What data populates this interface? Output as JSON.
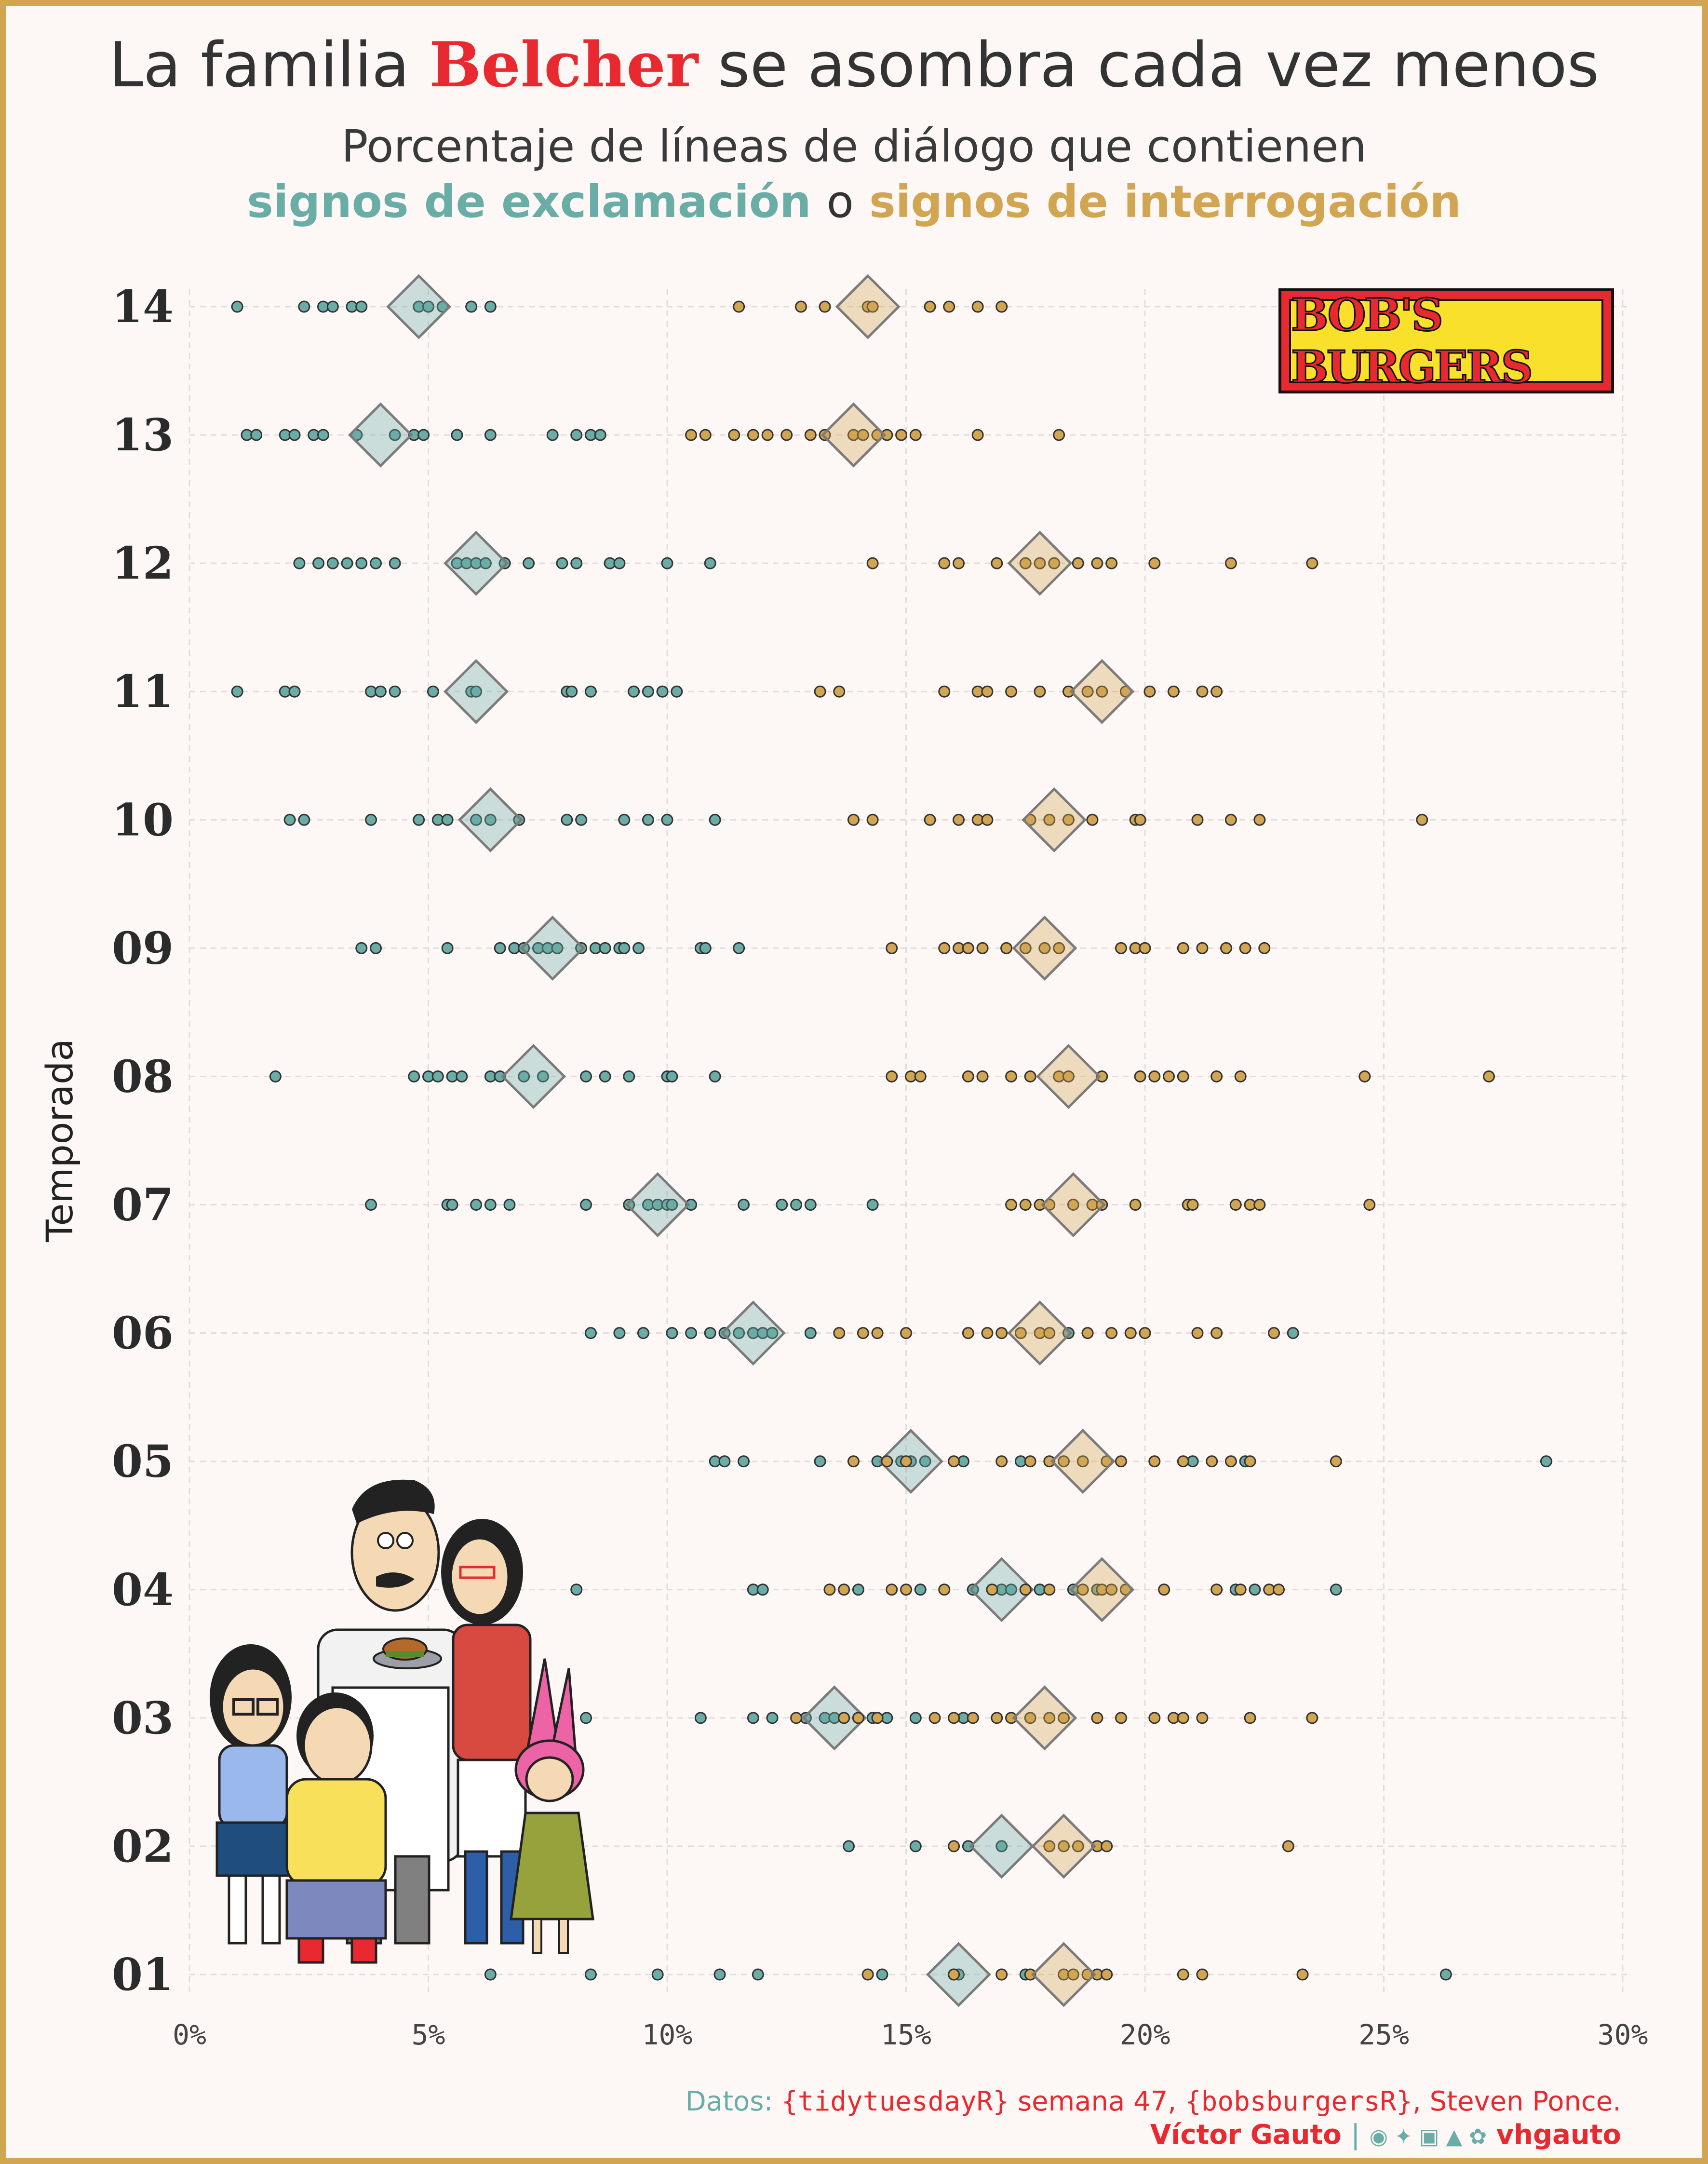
{
  "title": {
    "pre": "La familia",
    "brand": "Belcher",
    "post": "se asombra cada vez menos"
  },
  "subtitle": {
    "line1": "Porcentaje de líneas de diálogo que contienen",
    "exclamation": "signos de exclamación",
    "connector": "o",
    "interrogation": "signos de interrogación"
  },
  "logo_text": "BOB'S BURGERS",
  "footer": {
    "datos_label": "Datos:",
    "pkg1": "{tidytuesdayR}",
    "week": "semana 47,",
    "pkg2": "{bobsburgersR}",
    "source": ", Steven Ponce.",
    "author": "Víctor Gauto",
    "separator": "|",
    "social_icons": "github twitter instagram mastodon bluesky",
    "handle": "vhgauto"
  },
  "colors": {
    "exclamation": "#6aada7",
    "interrogation": "#d1a552",
    "brand": "#e8292f",
    "frame": "#d1a552",
    "background": "#fdf8f6"
  },
  "chart_data": {
    "type": "scatter",
    "ylabel": "Temporada",
    "xlabel": "",
    "xlim": [
      0,
      30
    ],
    "x_ticks": [
      "0%",
      "5%",
      "10%",
      "15%",
      "20%",
      "25%",
      "30%"
    ],
    "x_tick_values": [
      0,
      5,
      10,
      15,
      20,
      25,
      30
    ],
    "grid": true,
    "seasons": [
      "01",
      "02",
      "03",
      "04",
      "05",
      "06",
      "07",
      "08",
      "09",
      "10",
      "11",
      "12",
      "13",
      "14"
    ],
    "series": [
      {
        "name": "signos de exclamación",
        "color": "#6aada7",
        "means": [
          16.1,
          17.0,
          13.5,
          17.0,
          15.1,
          11.8,
          9.8,
          7.2,
          7.6,
          6.3,
          6.0,
          6.0,
          4.0,
          4.8
        ],
        "points": [
          [
            6.3,
            8.4,
            9.8,
            11.1,
            11.9,
            14.5,
            16.0,
            16.1,
            17.5,
            26.3
          ],
          [
            13.8,
            15.2,
            16.3,
            17.0
          ],
          [
            8.3,
            10.7,
            11.8,
            12.2,
            12.9,
            13.3,
            13.5,
            13.7,
            14.0,
            14.3,
            14.6,
            15.2,
            16.2
          ],
          [
            8.1,
            11.8,
            12.0,
            14.0,
            15.3,
            16.4,
            17.0,
            17.2,
            17.8,
            18.5,
            19.0,
            21.9,
            22.3,
            24.0
          ],
          [
            11.0,
            11.2,
            11.6,
            13.2,
            14.4,
            14.9,
            15.1,
            15.4,
            16.2,
            17.4,
            21.0,
            22.1,
            28.4
          ],
          [
            8.4,
            9.0,
            9.5,
            10.1,
            10.5,
            10.9,
            11.2,
            11.5,
            11.8,
            12.0,
            12.2,
            13.0,
            18.4,
            23.1
          ],
          [
            3.8,
            5.4,
            5.5,
            6.0,
            6.3,
            6.7,
            8.3,
            9.2,
            9.6,
            9.8,
            10.0,
            10.1,
            10.5,
            11.6,
            12.4,
            12.7,
            13.0,
            14.3
          ],
          [
            1.8,
            4.7,
            5.0,
            5.2,
            5.5,
            5.7,
            6.3,
            6.5,
            7.0,
            7.4,
            8.3,
            8.7,
            9.2,
            10.0,
            10.1,
            11.0
          ],
          [
            3.6,
            3.9,
            5.4,
            6.5,
            6.8,
            7.0,
            7.3,
            7.5,
            7.7,
            8.2,
            8.5,
            8.7,
            9.0,
            9.1,
            9.4,
            10.7,
            10.8,
            11.5
          ],
          [
            2.1,
            2.4,
            3.8,
            4.8,
            5.2,
            5.4,
            6.0,
            6.3,
            6.9,
            7.9,
            8.2,
            9.1,
            9.6,
            10.0,
            11.0
          ],
          [
            1.0,
            2.0,
            2.2,
            3.8,
            4.0,
            4.3,
            5.1,
            5.9,
            6.0,
            7.9,
            8.0,
            8.4,
            9.3,
            9.6,
            9.9,
            10.2
          ],
          [
            2.3,
            2.7,
            3.0,
            3.3,
            3.6,
            3.9,
            4.3,
            5.6,
            5.8,
            6.0,
            6.2,
            6.6,
            7.1,
            7.8,
            8.1,
            8.8,
            9.0,
            10.0,
            10.9
          ],
          [
            1.2,
            1.4,
            2.0,
            2.2,
            2.6,
            2.8,
            3.5,
            4.3,
            4.7,
            4.9,
            5.6,
            6.3,
            7.6,
            8.1,
            8.4,
            8.6
          ],
          [
            1.0,
            2.4,
            2.8,
            3.0,
            3.4,
            3.6,
            4.8,
            5.0,
            5.3,
            5.9,
            6.3
          ]
        ]
      },
      {
        "name": "signos de interrogación",
        "color": "#d1a552",
        "means": [
          18.3,
          18.3,
          17.9,
          19.1,
          18.7,
          17.8,
          18.5,
          18.4,
          17.9,
          18.1,
          19.1,
          17.8,
          13.9,
          14.2
        ],
        "points": [
          [
            14.2,
            16.0,
            17.0,
            17.6,
            18.3,
            18.5,
            18.8,
            19.0,
            19.2,
            20.8,
            21.2,
            23.3
          ],
          [
            16.0,
            18.0,
            18.3,
            18.6,
            19.0,
            19.2,
            23.0
          ],
          [
            12.7,
            13.7,
            14.0,
            14.4,
            15.6,
            16.0,
            16.4,
            16.9,
            17.2,
            17.6,
            18.0,
            18.3,
            19.0,
            19.5,
            20.2,
            20.6,
            20.8,
            21.2,
            22.2,
            23.5
          ],
          [
            13.4,
            13.7,
            14.7,
            15.0,
            15.8,
            16.8,
            17.5,
            18.0,
            18.7,
            19.1,
            19.3,
            19.6,
            20.4,
            21.5,
            22.0,
            22.6,
            22.8
          ],
          [
            13.9,
            14.6,
            15.0,
            16.0,
            17.0,
            17.6,
            18.0,
            18.3,
            18.7,
            19.2,
            19.5,
            20.2,
            20.8,
            21.4,
            21.8,
            22.2,
            24.0
          ],
          [
            13.6,
            14.1,
            14.4,
            15.0,
            16.3,
            16.7,
            17.0,
            17.4,
            17.8,
            18.0,
            18.8,
            19.3,
            19.7,
            20.0,
            21.1,
            21.5,
            22.7
          ],
          [
            17.2,
            17.5,
            17.8,
            18.0,
            18.5,
            18.9,
            19.1,
            19.8,
            20.9,
            21.0,
            21.9,
            22.2,
            22.4,
            24.7
          ],
          [
            14.7,
            15.1,
            15.3,
            16.3,
            16.6,
            17.2,
            17.6,
            18.2,
            18.4,
            19.1,
            19.9,
            20.2,
            20.5,
            20.8,
            21.5,
            22.0,
            24.6,
            27.2
          ],
          [
            14.7,
            15.8,
            16.1,
            16.3,
            16.6,
            17.1,
            17.5,
            17.9,
            18.2,
            19.5,
            19.8,
            20.0,
            20.8,
            21.2,
            21.7,
            22.1,
            22.5
          ],
          [
            13.9,
            14.3,
            15.5,
            16.1,
            16.5,
            16.7,
            17.6,
            18.0,
            18.4,
            18.9,
            19.8,
            19.9,
            21.1,
            21.8,
            22.4,
            25.8
          ],
          [
            13.2,
            13.6,
            15.8,
            16.5,
            16.7,
            17.2,
            17.8,
            18.4,
            18.8,
            19.1,
            19.6,
            20.1,
            20.6,
            21.2,
            21.5
          ],
          [
            14.3,
            15.8,
            16.1,
            16.9,
            17.5,
            17.8,
            18.1,
            18.6,
            19.0,
            19.3,
            20.2,
            21.8,
            23.5
          ],
          [
            10.5,
            10.8,
            11.4,
            11.8,
            12.1,
            12.5,
            13.0,
            13.3,
            13.9,
            14.1,
            14.4,
            14.6,
            14.9,
            15.2,
            16.5,
            18.2
          ],
          [
            11.5,
            12.8,
            13.3,
            14.2,
            14.3,
            15.5,
            15.9,
            16.5,
            17.0
          ]
        ]
      }
    ]
  }
}
